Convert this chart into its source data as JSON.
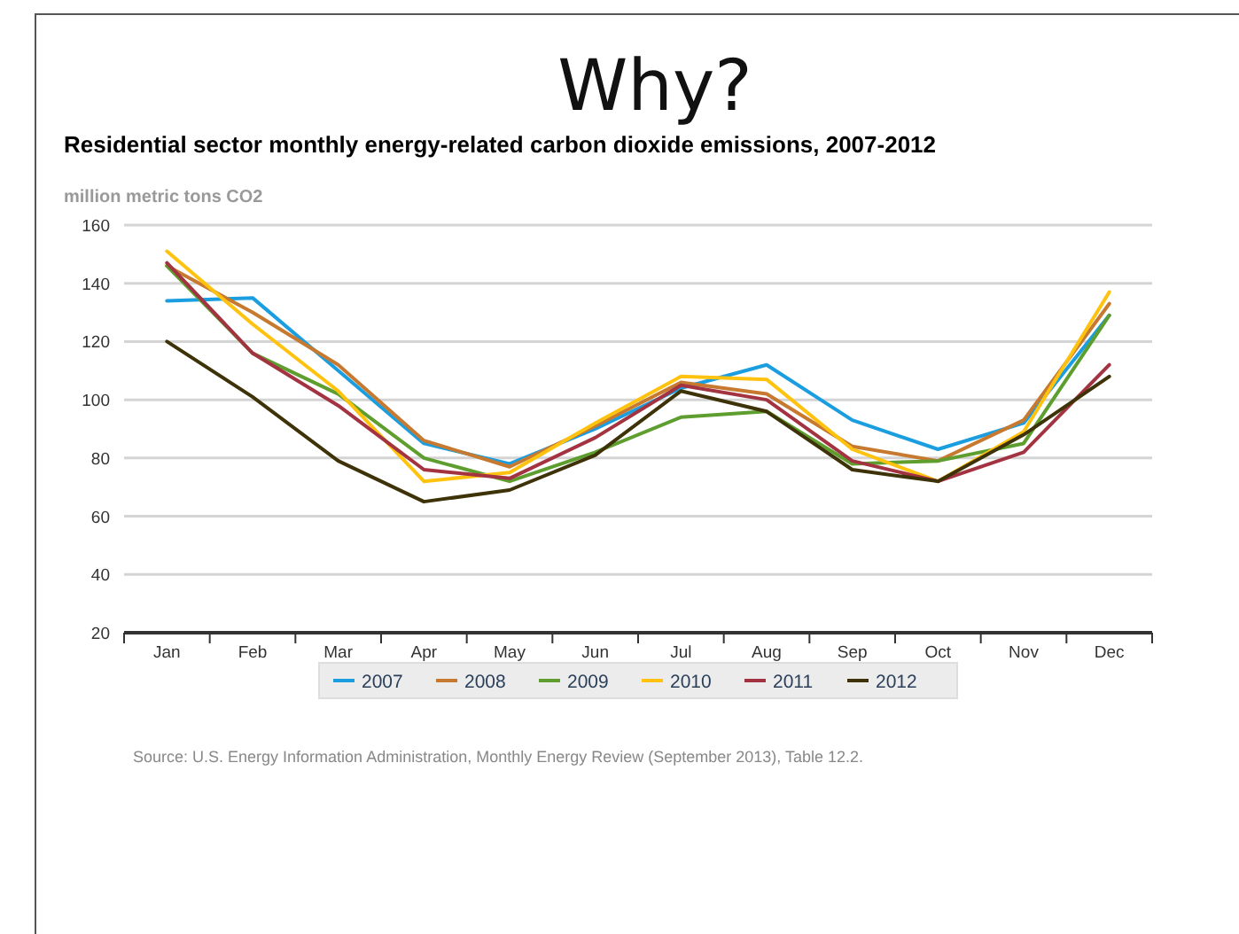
{
  "chart_data": {
    "type": "line",
    "title": "Why?",
    "subtitle": "Residential sector monthly energy-related carbon dioxide emissions, 2007-2012",
    "ylabel": "million metric tons CO2",
    "categories": [
      "Jan",
      "Feb",
      "Mar",
      "Apr",
      "May",
      "Jun",
      "Jul",
      "Aug",
      "Sep",
      "Oct",
      "Nov",
      "Dec"
    ],
    "series": [
      {
        "name": "2007",
        "color": "#1a9ee0",
        "values": [
          134,
          135,
          110,
          85,
          78,
          90,
          104,
          112,
          93,
          83,
          92,
          129
        ]
      },
      {
        "name": "2008",
        "color": "#c7792f",
        "values": [
          146,
          130,
          112,
          86,
          77,
          91,
          106,
          102,
          84,
          79,
          93,
          133
        ]
      },
      {
        "name": "2009",
        "color": "#5e9e2e",
        "values": [
          146,
          116,
          102,
          80,
          72,
          82,
          94,
          96,
          78,
          79,
          85,
          129
        ]
      },
      {
        "name": "2010",
        "color": "#ffc20e",
        "values": [
          151,
          126,
          103,
          72,
          75,
          92,
          108,
          107,
          83,
          72,
          89,
          137
        ]
      },
      {
        "name": "2011",
        "color": "#a33340",
        "values": [
          147,
          116,
          98,
          76,
          73,
          87,
          105,
          100,
          79,
          72,
          82,
          112
        ]
      },
      {
        "name": "2012",
        "color": "#3d3208",
        "values": [
          120,
          101,
          79,
          65,
          69,
          81,
          103,
          96,
          76,
          72,
          88,
          108
        ]
      }
    ],
    "ylim": [
      20,
      160
    ],
    "yticks": [
      20,
      40,
      60,
      80,
      100,
      120,
      140,
      160
    ],
    "grid": "y",
    "legend": "bottom",
    "marker": "none",
    "line_style": "solid",
    "annotations": [
      "Source: U.S. Energy Information Administration, Monthly Energy Review (September 2013), Table 12.2."
    ]
  }
}
